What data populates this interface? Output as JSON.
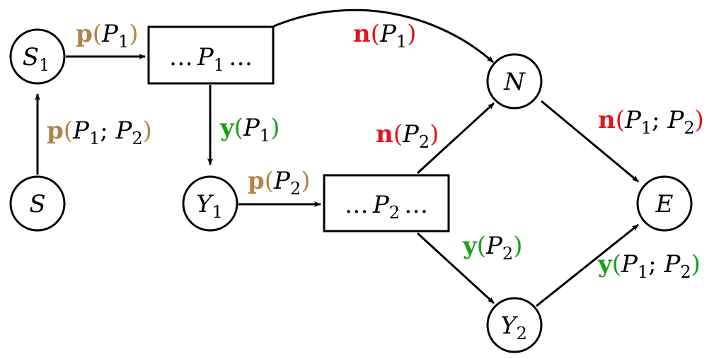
{
  "colors": {
    "stroke": "#000000",
    "p_label": "#b5824a",
    "n_label": "#e3141b",
    "y_label": "#1a9f1a"
  },
  "nodes": {
    "S": {
      "main": "S",
      "sub": ""
    },
    "S1": {
      "main": "S",
      "sub": "1"
    },
    "Y1": {
      "main": "Y",
      "sub": "1"
    },
    "Y2": {
      "main": "Y",
      "sub": "2"
    },
    "N": {
      "main": "N",
      "sub": ""
    },
    "E": {
      "main": "E",
      "sub": ""
    }
  },
  "boxes": {
    "P1": {
      "pre": "…",
      "main": "P",
      "sub": "1",
      "post": "…"
    },
    "P2": {
      "pre": "…",
      "main": "P",
      "sub": "2",
      "post": "…"
    }
  },
  "edges": {
    "S_to_S1": {
      "fn": "p",
      "open": "(",
      "v1": "P",
      "s1": "1",
      "sep": "; ",
      "v2": "P",
      "s2": "2",
      "close": ")"
    },
    "S1_to_P1": {
      "fn": "p",
      "open": "(",
      "v1": "P",
      "s1": "1",
      "close": ")"
    },
    "P1_to_N": {
      "fn": "n",
      "open": "(",
      "v1": "P",
      "s1": "1",
      "close": ")"
    },
    "P1_to_Y1": {
      "fn": "y",
      "open": "(",
      "v1": "P",
      "s1": "1",
      "close": ")"
    },
    "Y1_to_P2": {
      "fn": "p",
      "open": "(",
      "v1": "P",
      "s1": "2",
      "close": ")"
    },
    "P2_to_N": {
      "fn": "n",
      "open": "(",
      "v1": "P",
      "s1": "2",
      "close": ")"
    },
    "P2_to_Y2": {
      "fn": "y",
      "open": "(",
      "v1": "P",
      "s1": "2",
      "close": ")"
    },
    "N_to_E": {
      "fn": "n",
      "open": "(",
      "v1": "P",
      "s1": "1",
      "sep": "; ",
      "v2": "P",
      "s2": "2",
      "close": ")"
    },
    "Y2_to_E": {
      "fn": "y",
      "open": "(",
      "v1": "P",
      "s1": "1",
      "sep": "; ",
      "v2": "P",
      "s2": "2",
      "close": ")"
    }
  }
}
